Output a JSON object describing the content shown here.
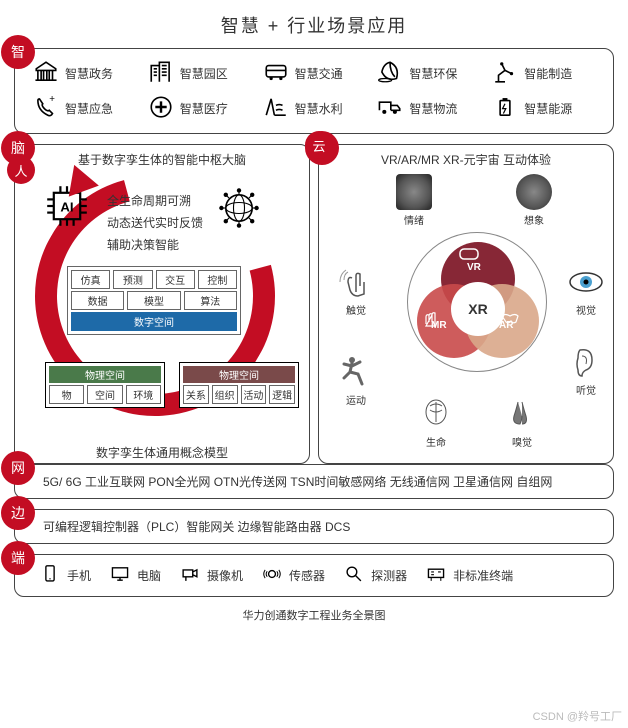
{
  "colors": {
    "accent": "#c30d23",
    "border": "#444444",
    "white": "#ffffff",
    "blue": "#1e6aa8",
    "green": "#4a7a4a",
    "brown": "#7a4a4a"
  },
  "title": "智慧 + 行业场景应用",
  "badges": {
    "zhi": "智",
    "nao": "脑",
    "ren": "人",
    "yun": "云",
    "wang": "网",
    "bian": "边",
    "duan": "端"
  },
  "apps": [
    {
      "label": "智慧政务",
      "icon": "gov"
    },
    {
      "label": "智慧园区",
      "icon": "buildings"
    },
    {
      "label": "智慧交通",
      "icon": "bus"
    },
    {
      "label": "智慧环保",
      "icon": "leaf"
    },
    {
      "label": "智能制造",
      "icon": "robot-arm"
    },
    {
      "label": "智慧应急",
      "icon": "phone"
    },
    {
      "label": "智慧医疗",
      "icon": "med"
    },
    {
      "label": "智慧水利",
      "icon": "dam"
    },
    {
      "label": "智慧物流",
      "icon": "truck"
    },
    {
      "label": "智慧能源",
      "icon": "battery"
    }
  ],
  "brain": {
    "subtitle": "基于数字孪生体的智能中枢大脑",
    "lines": [
      "全生命周期可溯",
      "动态送代实时反馈",
      "辅助决策智能"
    ],
    "top_row1": [
      "仿真",
      "预测",
      "交互",
      "控制"
    ],
    "top_row2": [
      "数据",
      "模型",
      "算法"
    ],
    "top_row3": "数字空间",
    "bl_hdr": "物理空间",
    "bl_cells": [
      "物",
      "空间",
      "环境"
    ],
    "br_hdr": "物理空间",
    "br_cells": [
      "关系",
      "组织",
      "活动",
      "逻辑"
    ],
    "caption": "数字孪生体通用概念模型",
    "ai_label": "AI"
  },
  "xr": {
    "subtitle": "VR/AR/MR XR-元宇宙 互动体验",
    "center": "XR",
    "venn_labels": [
      "VR",
      "AR",
      "MR"
    ],
    "senses": [
      {
        "label": "情绪",
        "pos": "tl"
      },
      {
        "label": "想象",
        "pos": "tr"
      },
      {
        "label": "触觉",
        "pos": "ml"
      },
      {
        "label": "视觉",
        "pos": "mr"
      },
      {
        "label": "运动",
        "pos": "bl"
      },
      {
        "label": "听觉",
        "pos": "br"
      },
      {
        "label": "生命",
        "pos": "bml"
      },
      {
        "label": "嗅觉",
        "pos": "bmr"
      }
    ]
  },
  "wang": "5G/ 6G 工业互联网  PON全光网  OTN光传送网  TSN时间敏感网络 无线通信网 卫星通信网  自组网",
  "bian": "可编程逻辑控制器（PLC）智能网关  边缘智能路由器  DCS",
  "duan": [
    {
      "label": "手机",
      "icon": "phone-dev"
    },
    {
      "label": "电脑",
      "icon": "pc"
    },
    {
      "label": "摄像机",
      "icon": "cam"
    },
    {
      "label": "传感器",
      "icon": "sensor"
    },
    {
      "label": "探测器",
      "icon": "probe"
    },
    {
      "label": "非标准终端",
      "icon": "misc"
    }
  ],
  "footer": "华力创通数字工程业务全景图",
  "watermark": "CSDN @羚号工厂"
}
